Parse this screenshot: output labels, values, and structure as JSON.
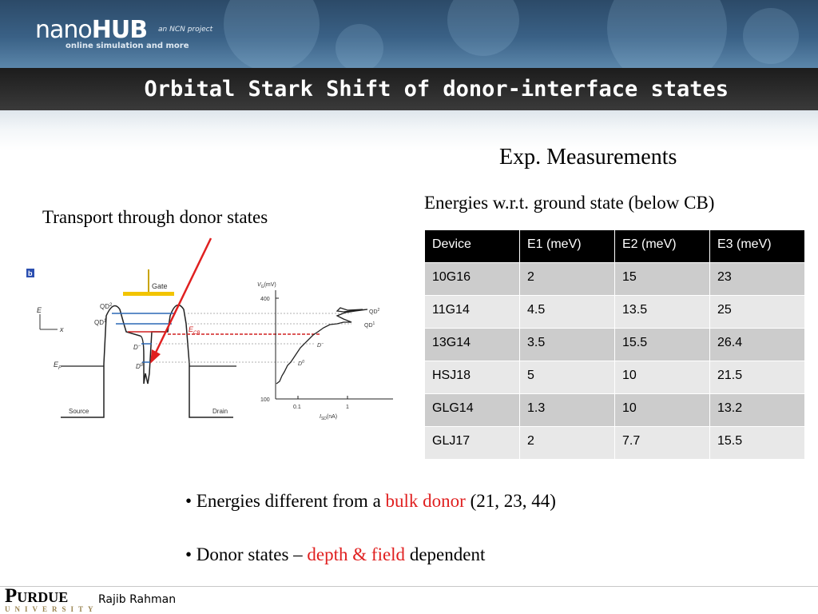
{
  "header": {
    "logo_nano": "nano",
    "logo_hub": "HUB",
    "tagline": "online simulation and more",
    "project": "an NCN project"
  },
  "slide": {
    "title": "Orbital Stark Shift of donor-interface states",
    "exp_title": "Exp. Measurements",
    "table_caption": "Energies w.r.t. ground state (below CB)",
    "figure_caption": "Transport through donor states"
  },
  "table": {
    "headers": [
      "Device",
      "E1 (meV)",
      "E2 (meV)",
      "E3 (meV)"
    ],
    "rows": [
      [
        "10G16",
        "2",
        "15",
        "23"
      ],
      [
        "11G14",
        "4.5",
        "13.5",
        "25"
      ],
      [
        "13G14",
        "3.5",
        "15.5",
        "26.4"
      ],
      [
        "HSJ18",
        "5",
        "10",
        "21.5"
      ],
      [
        "GLG14",
        "1.3",
        "10",
        "13.2"
      ],
      [
        "GLJ17",
        "2",
        "7.7",
        "15.5"
      ]
    ]
  },
  "figure": {
    "panel_label": "b",
    "gate": "Gate",
    "source": "Source",
    "drain": "Drain",
    "qd2": "QD",
    "qd2_sup": "2",
    "qd1": "QD",
    "qd1_sup": "1",
    "e_axis": "E",
    "x_axis": "x",
    "ef": "E",
    "ef_sub": "F",
    "ecb": "E",
    "ecb_sub": "CB",
    "d_minus": "D",
    "d_minus_sup": "−",
    "d_zero": "D",
    "d_zero_sup": "0",
    "vg_label": "V",
    "vg_sub": "G",
    "vg_unit": "(mV)",
    "y_tick_400": "400",
    "y_tick_100": "100",
    "x_tick_01": "0.1",
    "x_tick_1": "1",
    "isd_label": "I",
    "isd_sub": "SD",
    "isd_unit": "(nA)"
  },
  "bullets": {
    "b1_pre": "• Energies different from a ",
    "b1_red": "bulk donor",
    "b1_post": " (21, 23, 44)",
    "b2_pre": "• Donor states – ",
    "b2_red": "depth & field",
    "b2_post": " dependent"
  },
  "footer": {
    "university": "Purdue",
    "university_sub": "UNIVERSITY",
    "author": "Rajib Rahman"
  },
  "colors": {
    "table_header_bg": "#000000",
    "table_row_dark": "#cccccc",
    "table_row_light": "#e8e8e8",
    "accent_red": "#e02020",
    "title_bar": "#2a2a2a"
  }
}
